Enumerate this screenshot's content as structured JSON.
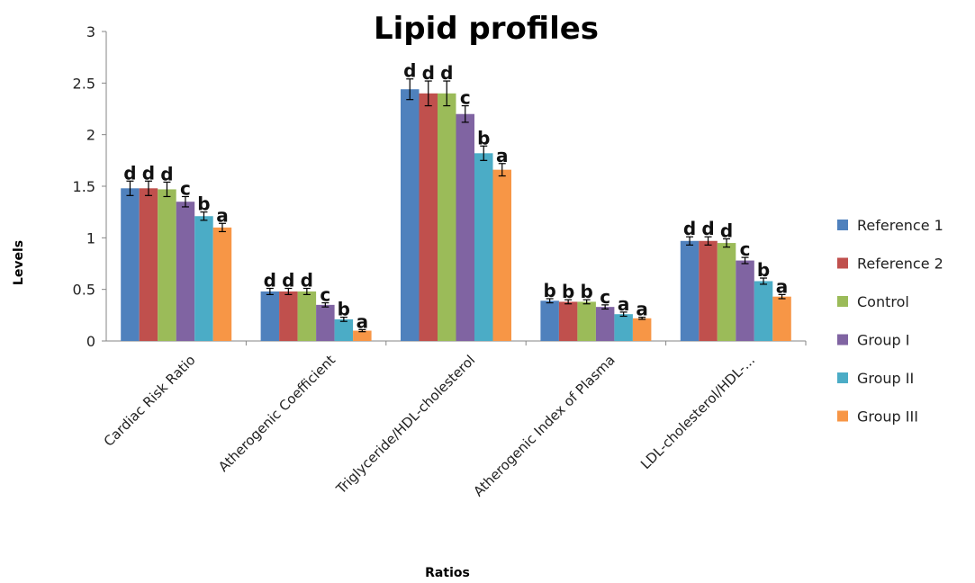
{
  "chart_data": {
    "type": "bar",
    "title": "Lipid profiles",
    "xlabel": "Ratios",
    "ylabel": "Levels",
    "ylim": [
      0,
      3
    ],
    "yticks": [
      "0",
      "0.5",
      "1",
      "1.5",
      "2",
      "2.5",
      "3"
    ],
    "grid": false,
    "legend_position": "right",
    "categories": [
      "Cardiac Risk Ratio",
      "Atherogenic Coefficient",
      "Triglyceride/HDL-cholesterol",
      "Atherogenic Index of Plasma",
      "LDL-cholesterol/HDL-..."
    ],
    "series": [
      {
        "name": "Reference 1",
        "color": "#4f81bd",
        "values": [
          1.48,
          0.48,
          2.44,
          0.39,
          0.97
        ],
        "errors": [
          0.07,
          0.03,
          0.1,
          0.02,
          0.04
        ],
        "labels": [
          "d",
          "d",
          "d",
          "b",
          "d"
        ]
      },
      {
        "name": "Reference 2",
        "color": "#c0504d",
        "values": [
          1.48,
          0.48,
          2.4,
          0.38,
          0.97
        ],
        "errors": [
          0.07,
          0.03,
          0.12,
          0.02,
          0.04
        ],
        "labels": [
          "d",
          "d",
          "d",
          "b",
          "d"
        ]
      },
      {
        "name": "Control",
        "color": "#9bbb59",
        "values": [
          1.47,
          0.48,
          2.4,
          0.38,
          0.95
        ],
        "errors": [
          0.07,
          0.03,
          0.12,
          0.02,
          0.04
        ],
        "labels": [
          "d",
          "d",
          "d",
          "b",
          "d"
        ]
      },
      {
        "name": "Group I",
        "color": "#8064a2",
        "values": [
          1.35,
          0.35,
          2.2,
          0.33,
          0.78
        ],
        "errors": [
          0.05,
          0.02,
          0.08,
          0.02,
          0.03
        ],
        "labels": [
          "c",
          "c",
          "c",
          "c",
          "c"
        ]
      },
      {
        "name": "Group II",
        "color": "#4bacc6",
        "values": [
          1.21,
          0.21,
          1.82,
          0.26,
          0.58
        ],
        "errors": [
          0.04,
          0.02,
          0.07,
          0.02,
          0.03
        ],
        "labels": [
          "b",
          "b",
          "b",
          "a",
          "b"
        ]
      },
      {
        "name": "Group III",
        "color": "#f79646",
        "values": [
          1.1,
          0.1,
          1.66,
          0.22,
          0.43
        ],
        "errors": [
          0.04,
          0.01,
          0.06,
          0.01,
          0.02
        ],
        "labels": [
          "a",
          "a",
          "a",
          "a",
          "a"
        ]
      }
    ]
  }
}
